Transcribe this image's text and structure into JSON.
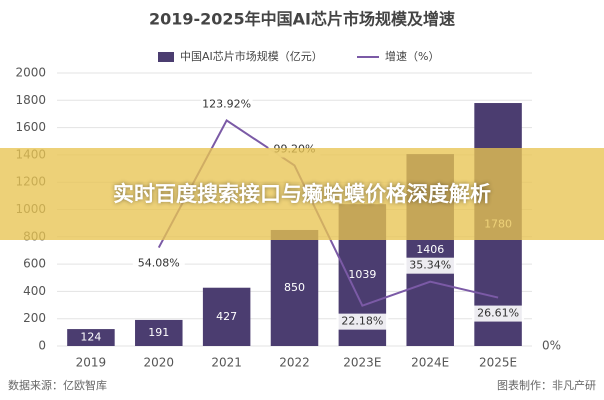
{
  "chart_data": {
    "type": "bar_line",
    "title": "2019-2025年中国AI芯片市场规模及增速",
    "categories": [
      "2019",
      "2020",
      "2021",
      "2022",
      "2023E",
      "2024E",
      "2025E"
    ],
    "series": [
      {
        "name": "中国AI芯片市场规模（亿元）",
        "type": "bar",
        "color": "#4b3d70",
        "values": [
          124,
          191,
          427,
          850,
          1039,
          1406,
          1780
        ]
      },
      {
        "name": "增速（%）",
        "type": "line",
        "axis": "y2",
        "color": "#7b5aa6",
        "values": [
          null,
          54.08,
          123.92,
          99.2,
          22.18,
          35.34,
          26.61
        ],
        "value_labels": [
          null,
          "54.08%",
          "123.92%",
          "99.20%",
          "22.18%",
          "35.34%",
          "26.61%"
        ]
      }
    ],
    "ylim": [
      0,
      2000
    ],
    "yticks": [
      0,
      200,
      400,
      600,
      800,
      1000,
      1200,
      1400,
      1600,
      1800,
      2000
    ],
    "y2lim": [
      0,
      150
    ],
    "y2ticks": [
      {
        "value": 0,
        "label": "0%"
      }
    ],
    "grid": true,
    "source": "数据来源：亿欧智库",
    "credit": "图表制作：非凡产研"
  },
  "banner": {
    "text": "实时百度搜索接口与癞蛤蟆价格深度解析"
  }
}
